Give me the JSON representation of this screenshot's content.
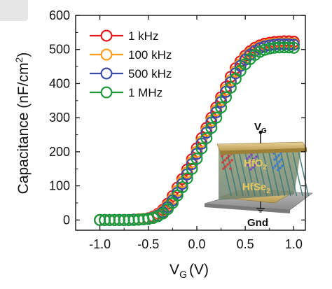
{
  "chart_data": {
    "type": "scatter",
    "title": "",
    "xlabel": "V",
    "xlabel_sub": "G",
    "xlabel_unit": "(V)",
    "ylabel": "Capacitance (nF/cm",
    "ylabel_sup": "2",
    "ylabel_end": ")",
    "xlim": [
      -1.25,
      1.12
    ],
    "ylim": [
      -30,
      600
    ],
    "xticks": [
      -1.0,
      -0.5,
      0.0,
      0.5,
      1.0
    ],
    "xtick_labels": [
      "-1.0",
      "-0.5",
      "0.0",
      "0.5",
      "1.0"
    ],
    "yticks": [
      0,
      100,
      200,
      300,
      400,
      500,
      600
    ],
    "ytick_labels": [
      "0",
      "100",
      "200",
      "300",
      "400",
      "500",
      "600"
    ],
    "legend_position": "top-left",
    "x": [
      -1.0,
      -0.95,
      -0.9,
      -0.85,
      -0.8,
      -0.75,
      -0.7,
      -0.65,
      -0.6,
      -0.55,
      -0.5,
      -0.45,
      -0.4,
      -0.35,
      -0.3,
      -0.25,
      -0.2,
      -0.15,
      -0.1,
      -0.05,
      0.0,
      0.05,
      0.1,
      0.15,
      0.2,
      0.25,
      0.3,
      0.35,
      0.4,
      0.45,
      0.5,
      0.55,
      0.6,
      0.65,
      0.7,
      0.75,
      0.8,
      0.85,
      0.9,
      0.95,
      1.0
    ],
    "series": [
      {
        "name": "1 kHz",
        "color": "#e31a1c",
        "values": [
          0,
          0,
          0,
          0,
          0,
          0,
          0,
          1,
          2,
          3,
          5,
          10,
          18,
          30,
          48,
          70,
          95,
          120,
          148,
          178,
          210,
          240,
          270,
          300,
          330,
          360,
          390,
          420,
          445,
          465,
          482,
          495,
          505,
          512,
          517,
          520,
          522,
          523,
          524,
          524,
          523
        ]
      },
      {
        "name": "100 kHz",
        "color": "#ff9a1a",
        "values": [
          0,
          0,
          0,
          0,
          0,
          0,
          0,
          1,
          2,
          3,
          4,
          8,
          15,
          26,
          42,
          62,
          86,
          112,
          140,
          170,
          200,
          230,
          262,
          292,
          322,
          352,
          382,
          410,
          436,
          457,
          475,
          489,
          499,
          507,
          512,
          515,
          517,
          518,
          518,
          518,
          517
        ]
      },
      {
        "name": "500 kHz",
        "color": "#3a4aa8",
        "values": [
          0,
          0,
          0,
          0,
          0,
          0,
          0,
          1,
          1,
          2,
          4,
          7,
          13,
          23,
          38,
          57,
          80,
          106,
          134,
          164,
          194,
          224,
          256,
          286,
          316,
          346,
          376,
          404,
          430,
          452,
          470,
          485,
          496,
          504,
          509,
          512,
          514,
          515,
          515,
          515,
          514
        ]
      },
      {
        "name": "1 MHz",
        "color": "#1a9a3a",
        "values": [
          0,
          0,
          0,
          0,
          0,
          0,
          0,
          0,
          1,
          2,
          3,
          6,
          11,
          19,
          32,
          50,
          72,
          96,
          122,
          150,
          180,
          210,
          240,
          270,
          300,
          330,
          360,
          388,
          414,
          437,
          457,
          472,
          484,
          493,
          499,
          503,
          505,
          506,
          506,
          506,
          505
        ]
      }
    ],
    "inset": {
      "gate_label": "V",
      "gate_sub": "G",
      "oxide_label": "HfO",
      "oxide_sub": "2",
      "channel_label": "HfSe",
      "channel_sub": "2",
      "ground_label": "Gnd"
    }
  }
}
